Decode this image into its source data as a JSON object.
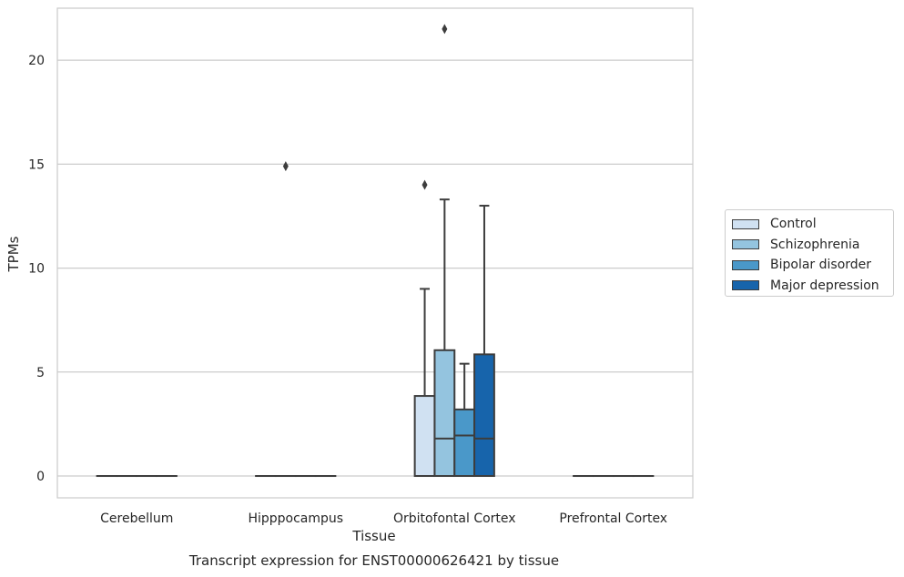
{
  "chart_data": {
    "type": "box",
    "title": "Transcript expression for ENST00000626421 by tissue",
    "xlabel": "Tissue",
    "ylabel": "TPMs",
    "ylim": [
      -1.05,
      22.5
    ],
    "yticks": [
      0,
      5,
      10,
      15,
      20
    ],
    "grid": "horizontal",
    "legend_position": "right",
    "categories": [
      "Cerebellum",
      "Hipppocampus",
      "Orbitofontal Cortex",
      "Prefrontal Cortex"
    ],
    "series": [
      {
        "name": "Control",
        "color": "#d0e1f2",
        "boxes": [
          {
            "q1": 0,
            "median": 0,
            "q3": 0,
            "whisker_low": 0,
            "whisker_high": 0,
            "outliers": []
          },
          {
            "q1": 0,
            "median": 0,
            "q3": 0,
            "whisker_low": 0,
            "whisker_high": 0,
            "outliers": []
          },
          {
            "q1": 0,
            "median": 0,
            "q3": 3.85,
            "whisker_low": 0,
            "whisker_high": 9.0,
            "outliers": [
              14.0
            ]
          },
          {
            "q1": 0,
            "median": 0,
            "q3": 0,
            "whisker_low": 0,
            "whisker_high": 0,
            "outliers": []
          }
        ]
      },
      {
        "name": "Schizophrenia",
        "color": "#94c4df",
        "boxes": [
          {
            "q1": 0,
            "median": 0,
            "q3": 0,
            "whisker_low": 0,
            "whisker_high": 0,
            "outliers": []
          },
          {
            "q1": 0,
            "median": 0,
            "q3": 0,
            "whisker_low": 0,
            "whisker_high": 0,
            "outliers": [
              14.9
            ]
          },
          {
            "q1": 0,
            "median": 1.8,
            "q3": 6.05,
            "whisker_low": 0,
            "whisker_high": 13.3,
            "outliers": [
              21.5
            ]
          },
          {
            "q1": 0,
            "median": 0,
            "q3": 0,
            "whisker_low": 0,
            "whisker_high": 0,
            "outliers": []
          }
        ]
      },
      {
        "name": "Bipolar disorder",
        "color": "#4a98c9",
        "boxes": [
          {
            "q1": 0,
            "median": 0,
            "q3": 0,
            "whisker_low": 0,
            "whisker_high": 0,
            "outliers": []
          },
          {
            "q1": 0,
            "median": 0,
            "q3": 0,
            "whisker_low": 0,
            "whisker_high": 0,
            "outliers": []
          },
          {
            "q1": 0,
            "median": 1.95,
            "q3": 3.2,
            "whisker_low": 0,
            "whisker_high": 5.4,
            "outliers": []
          },
          {
            "q1": 0,
            "median": 0,
            "q3": 0,
            "whisker_low": 0,
            "whisker_high": 0,
            "outliers": []
          }
        ]
      },
      {
        "name": "Major depression",
        "color": "#1764ab",
        "boxes": [
          {
            "q1": 0,
            "median": 0,
            "q3": 0,
            "whisker_low": 0,
            "whisker_high": 0,
            "outliers": []
          },
          {
            "q1": 0,
            "median": 0,
            "q3": 0,
            "whisker_low": 0,
            "whisker_high": 0,
            "outliers": []
          },
          {
            "q1": 0,
            "median": 1.8,
            "q3": 5.85,
            "whisker_low": 0,
            "whisker_high": 13.0,
            "outliers": []
          },
          {
            "q1": 0,
            "median": 0,
            "q3": 0,
            "whisker_low": 0,
            "whisker_high": 0,
            "outliers": []
          }
        ]
      }
    ]
  }
}
